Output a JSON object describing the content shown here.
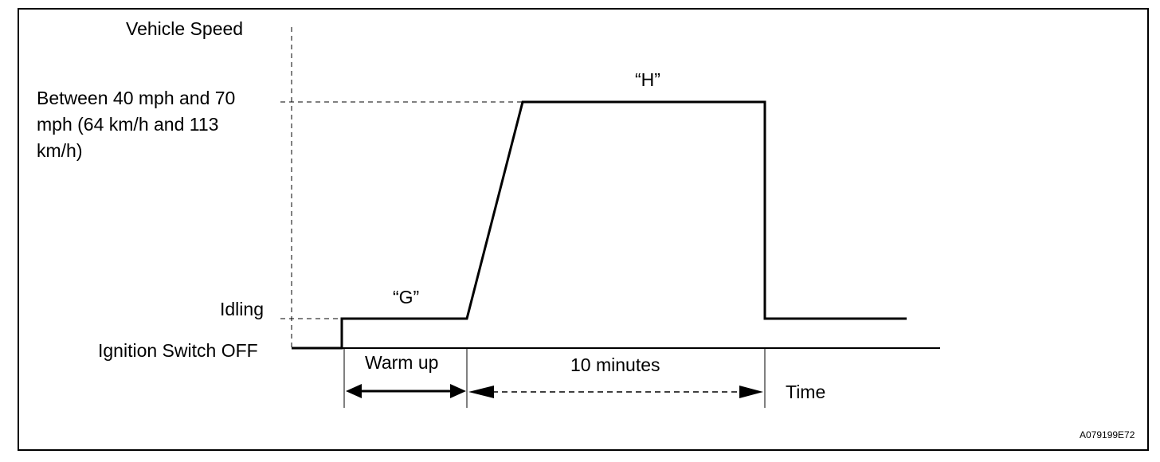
{
  "diagram": {
    "y_axis_title": "Vehicle Speed",
    "levels": {
      "target_speed": "Between 40 mph and 70 mph (64 km/h and 113 km/h)",
      "idling": "Idling",
      "ignition_off": "Ignition Switch OFF"
    },
    "phases": {
      "g": "“G”",
      "h": "“H”"
    },
    "durations": {
      "warm_up": "Warm up",
      "ten_minutes": "10 minutes"
    },
    "x_axis_title": "Time",
    "figure_code": "A079199E72"
  }
}
